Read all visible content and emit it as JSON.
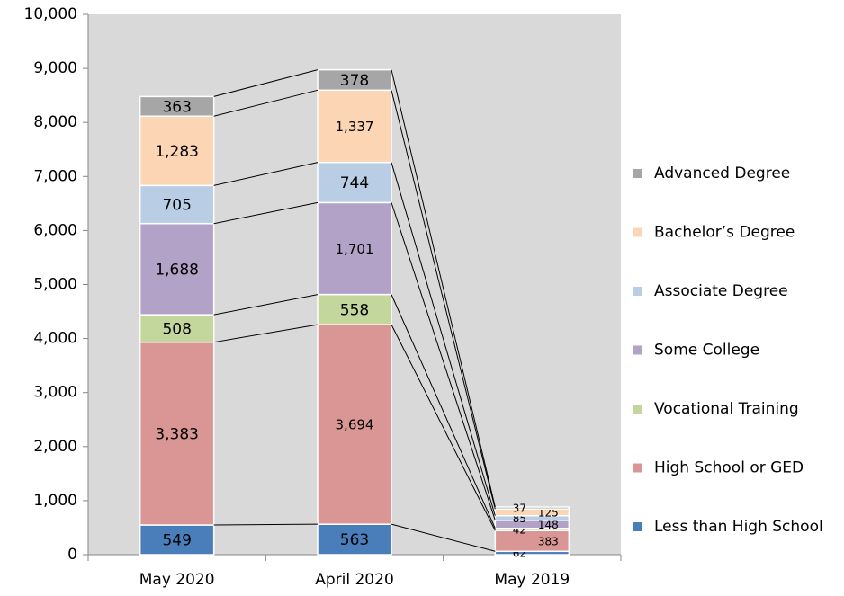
{
  "chart_data": {
    "type": "stacked-bar",
    "categories": [
      "May 2020",
      "April 2020",
      "May 2019"
    ],
    "series": [
      {
        "name": "Less than High School",
        "color": "#4a7ebb",
        "values": [
          549,
          563,
          62
        ]
      },
      {
        "name": "High School or GED",
        "color": "#d99694",
        "values": [
          3383,
          3694,
          383
        ],
        "value_labels": [
          "3,383",
          "3,694",
          "383"
        ]
      },
      {
        "name": "Vocational Training",
        "color": "#c3d69b",
        "values": [
          508,
          558,
          42
        ]
      },
      {
        "name": "Some College",
        "color": "#b3a2c7",
        "values": [
          1688,
          1701,
          148
        ],
        "value_labels": [
          "1,688",
          "1,701",
          "148"
        ]
      },
      {
        "name": "Associate Degree",
        "color": "#b9cde5",
        "values": [
          705,
          744,
          85
        ]
      },
      {
        "name": "Bachelor’s Degree",
        "color": "#fcd5b5",
        "values": [
          1283,
          1337,
          125
        ],
        "value_labels": [
          "1,283",
          "1,337",
          "125"
        ]
      },
      {
        "name": "Advanced Degree",
        "color": "#a6a6a6",
        "values": [
          363,
          378,
          37
        ]
      }
    ],
    "ylim": [
      0,
      10000
    ],
    "yticks": [
      0,
      {
        "value": 1000,
        "label": "1,000"
      },
      {
        "value": 2000,
        "label": "2,000"
      },
      {
        "value": 3000,
        "label": "3,000"
      },
      {
        "value": 4000,
        "label": "4,000"
      },
      {
        "value": 5000,
        "label": "5,000"
      },
      {
        "value": 6000,
        "label": "6,000"
      },
      {
        "value": 7000,
        "label": "7,000"
      },
      {
        "value": 8000,
        "label": "8,000"
      },
      {
        "value": 9000,
        "label": "9,000"
      },
      {
        "value": 10000,
        "label": "10,000"
      }
    ],
    "grid": false,
    "legend": "right",
    "series_lines": true
  }
}
